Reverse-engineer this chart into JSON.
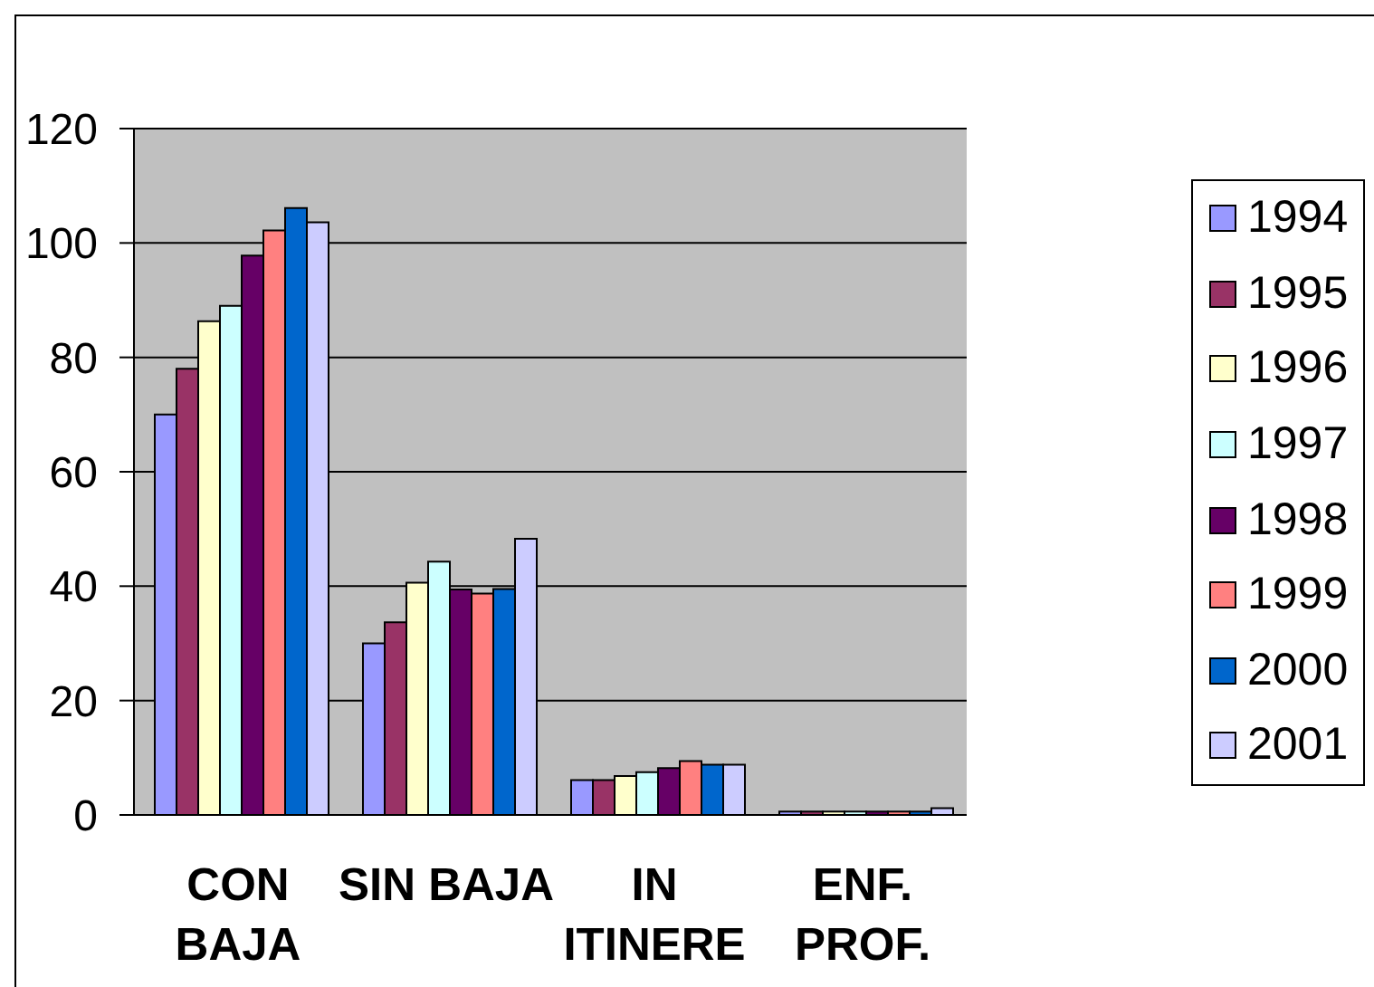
{
  "chart_data": {
    "type": "bar",
    "categories": [
      "CON\nBAJA",
      "SIN BAJA",
      "IN\nITINERE",
      "ENF.\nPROF."
    ],
    "series": [
      {
        "name": "1994",
        "color": "#9999ff",
        "values": [
          70,
          30,
          6.1,
          0.6
        ]
      },
      {
        "name": "1995",
        "color": "#993366",
        "values": [
          78,
          33.7,
          6.1,
          0.6
        ]
      },
      {
        "name": "1996",
        "color": "#ffffcc",
        "values": [
          86.3,
          40.6,
          6.8,
          0.6
        ]
      },
      {
        "name": "1997",
        "color": "#ccffff",
        "values": [
          89,
          44.3,
          7.5,
          0.6
        ]
      },
      {
        "name": "1998",
        "color": "#660066",
        "values": [
          97.8,
          39.4,
          8.2,
          0.6
        ]
      },
      {
        "name": "1999",
        "color": "#ff8080",
        "values": [
          102.2,
          38.7,
          9.4,
          0.6
        ]
      },
      {
        "name": "2000",
        "color": "#0066cc",
        "values": [
          106.1,
          39.5,
          8.8,
          0.6
        ]
      },
      {
        "name": "2001",
        "color": "#ccccff",
        "values": [
          103.6,
          48.3,
          8.8,
          1.2
        ]
      }
    ],
    "ylim": [
      0,
      120
    ],
    "yticks": [
      0,
      20,
      40,
      60,
      80,
      100,
      120
    ],
    "grid": "y",
    "legend": "right"
  }
}
